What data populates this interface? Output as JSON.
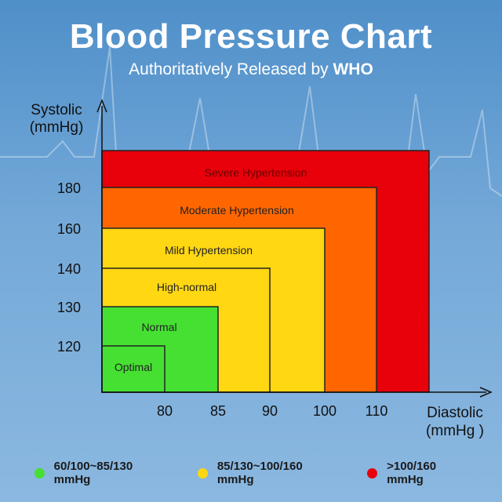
{
  "title": "Blood Pressure Chart",
  "subtitle_prefix": "Authoritatively Released by ",
  "subtitle_bold": "WHO",
  "chart_data": {
    "type": "nested-rectangles",
    "xlabel_line1": "Diastolic",
    "xlabel_line2": "(mmHg )",
    "ylabel_line1": "Systolic",
    "ylabel_line2": "(mmHg)",
    "x_ticks": [
      80,
      85,
      90,
      100,
      110
    ],
    "y_ticks": [
      120,
      130,
      140,
      160,
      180
    ],
    "zones": [
      {
        "name": "Severe Hypertension",
        "diastolic_max": null,
        "systolic_max": null,
        "color": "#e8000b"
      },
      {
        "name": "Moderate Hypertension",
        "diastolic_max": 110,
        "systolic_max": 180,
        "color": "#ff6600"
      },
      {
        "name": "Mild Hypertension",
        "diastolic_max": 100,
        "systolic_max": 160,
        "color": "#ffd712"
      },
      {
        "name": "High-normal",
        "diastolic_max": 90,
        "systolic_max": 140,
        "color": "#ffd712"
      },
      {
        "name": "Normal",
        "diastolic_max": 85,
        "systolic_max": 130,
        "color": "#46e032"
      },
      {
        "name": "Optimal",
        "diastolic_max": 80,
        "systolic_max": 120,
        "color": "#46e032"
      }
    ]
  },
  "legend": [
    {
      "label": "60/100~85/130 mmHg",
      "color": "#46e032"
    },
    {
      "label": "85/130~100/160 mmHg",
      "color": "#ffd712"
    },
    {
      "label": ">100/160 mmHg",
      "color": "#e8000b"
    }
  ]
}
